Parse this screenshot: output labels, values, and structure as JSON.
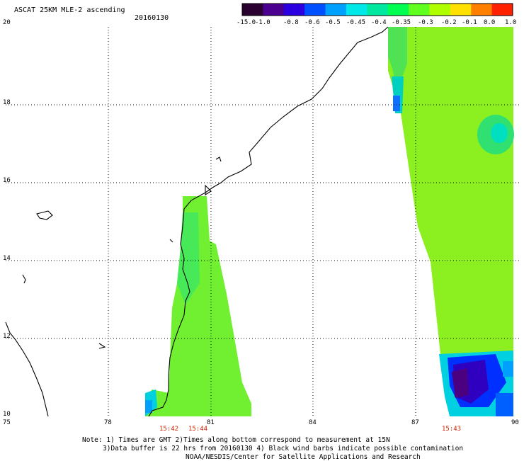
{
  "header": {
    "title": "ASCAT 25KM MLE-2 ascending",
    "date": "20160130"
  },
  "colorbar": {
    "labels": [
      "-15.0",
      "-1.0",
      "-0.8",
      "-0.6",
      "-0.5",
      "-0.45",
      "-0.4",
      "-0.35",
      "-0.3",
      "-0.2",
      "-0.1",
      "0.0",
      "1.0"
    ],
    "colors": [
      "#2a0030",
      "#4b0090",
      "#2a00e0",
      "#0050ff",
      "#00a0ff",
      "#00e8e8",
      "#00e8a0",
      "#00ff50",
      "#60ff20",
      "#b0ff00",
      "#ffe000",
      "#ff8000",
      "#ff2000"
    ]
  },
  "axes": {
    "x_ticks": [
      "75",
      "78",
      "81",
      "84",
      "87",
      "90"
    ],
    "y_ticks": [
      "20",
      "18",
      "16",
      "14",
      "12",
      "10"
    ]
  },
  "swath_times": [
    "15:42",
    "15:44",
    "15:43"
  ],
  "notes": {
    "line1": "Note: 1) Times are GMT 2)Times along bottom correspond to measurement at 15N",
    "line2": "3)Data buffer is 22 hrs from 20160130 4) Black wind barbs indicate possible contamination",
    "line3": "NOAA/NESDIS/Center for Satellite Applications and Research"
  }
}
